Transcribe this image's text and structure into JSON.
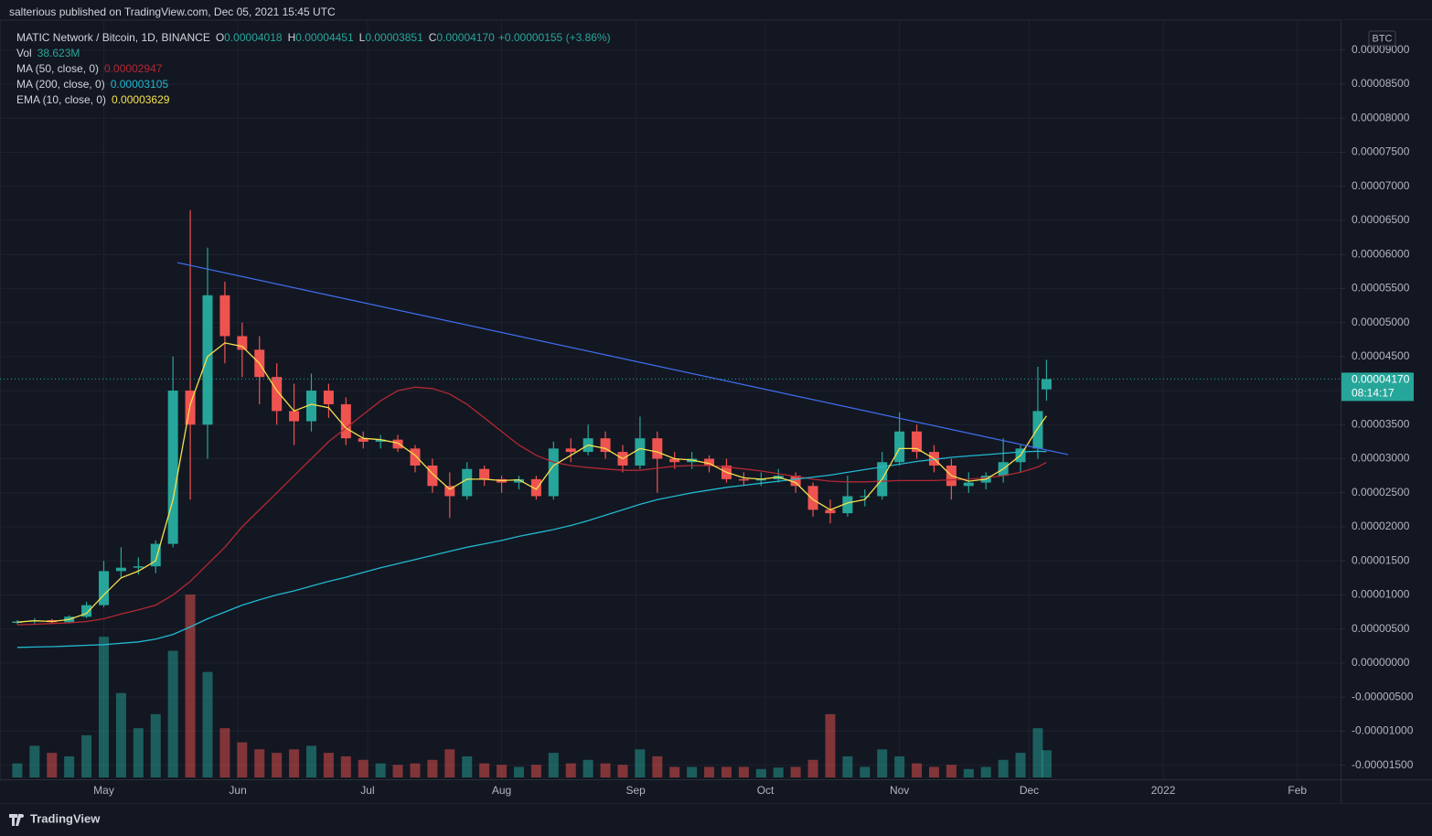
{
  "header": "salterious published on TradingView.com, Dec 05, 2021 15:45 UTC",
  "footer": "TradingView",
  "chart_data": {
    "type": "candlestick",
    "title": "MATIC Network / Bitcoin, 1D, BINANCE",
    "ohlc_legend": [
      {
        "key": "O",
        "text": "0.00004018"
      },
      {
        "key": "H",
        "text": "0.00004451"
      },
      {
        "key": "L",
        "text": "0.00003851"
      },
      {
        "key": "C",
        "text": "0.00004170"
      }
    ],
    "change": "+0.00000155 (+3.86%)",
    "currency": "BTC",
    "last_price_label": "0.00004170",
    "countdown": "08:14:17",
    "up_color": "#26a69a",
    "down_color": "#ef5350",
    "grid": true,
    "x": [
      "2021-04-11",
      "2021-04-15",
      "2021-04-19",
      "2021-04-23",
      "2021-04-27",
      "2021-05-01",
      "2021-05-05",
      "2021-05-09",
      "2021-05-13",
      "2021-05-17",
      "2021-05-21",
      "2021-05-25",
      "2021-05-29",
      "2021-06-02",
      "2021-06-06",
      "2021-06-10",
      "2021-06-14",
      "2021-06-18",
      "2021-06-22",
      "2021-06-26",
      "2021-06-30",
      "2021-07-04",
      "2021-07-08",
      "2021-07-12",
      "2021-07-16",
      "2021-07-20",
      "2021-07-24",
      "2021-07-28",
      "2021-08-01",
      "2021-08-05",
      "2021-08-09",
      "2021-08-13",
      "2021-08-17",
      "2021-08-21",
      "2021-08-25",
      "2021-08-29",
      "2021-09-02",
      "2021-09-06",
      "2021-09-10",
      "2021-09-14",
      "2021-09-18",
      "2021-09-22",
      "2021-09-26",
      "2021-09-30",
      "2021-10-04",
      "2021-10-08",
      "2021-10-12",
      "2021-10-16",
      "2021-10-20",
      "2021-10-24",
      "2021-10-28",
      "2021-11-01",
      "2021-11-05",
      "2021-11-09",
      "2021-11-13",
      "2021-11-17",
      "2021-11-21",
      "2021-11-25",
      "2021-11-29",
      "2021-12-03",
      "2021-12-05"
    ],
    "open": [
      5.9e-06,
      6.1e-06,
      6.3e-06,
      6e-06,
      6.8e-06,
      8.5e-06,
      1.35e-05,
      1.4e-05,
      1.42e-05,
      1.75e-05,
      4e-05,
      3.5e-05,
      5.4e-05,
      4.8e-05,
      4.6e-05,
      4.2e-05,
      3.7e-05,
      3.55e-05,
      4e-05,
      3.8e-05,
      3.3e-05,
      3.25e-05,
      3.28e-05,
      3.15e-05,
      2.9e-05,
      2.6e-05,
      2.45e-05,
      2.85e-05,
      2.7e-05,
      2.65e-05,
      2.7e-05,
      2.45e-05,
      3.15e-05,
      3.1e-05,
      3.3e-05,
      3.1e-05,
      2.9e-05,
      3.3e-05,
      3e-05,
      2.95e-05,
      3e-05,
      2.9e-05,
      2.7e-05,
      2.68e-05,
      2.7e-05,
      2.75e-05,
      2.6e-05,
      2.25e-05,
      2.2e-05,
      2.45e-05,
      2.45e-05,
      2.95e-05,
      3.4e-05,
      3.1e-05,
      2.9e-05,
      2.6e-05,
      2.65e-05,
      2.75e-05,
      2.95e-05,
      3.15e-05,
      4.018e-05
    ],
    "high": [
      6.3e-06,
      6.6e-06,
      6.5e-06,
      7e-06,
      9e-06,
      1.5e-05,
      1.7e-05,
      1.55e-05,
      1.8e-05,
      4.5e-05,
      6.65e-05,
      6.1e-05,
      5.6e-05,
      5e-05,
      4.8e-05,
      4.4e-05,
      4.1e-05,
      4.25e-05,
      4.1e-05,
      3.9e-05,
      3.4e-05,
      3.35e-05,
      3.35e-05,
      3.2e-05,
      3e-05,
      2.8e-05,
      2.95e-05,
      2.9e-05,
      2.75e-05,
      2.75e-05,
      2.75e-05,
      3.25e-05,
      3.3e-05,
      3.5e-05,
      3.4e-05,
      3.2e-05,
      3.62e-05,
      3.4e-05,
      3.1e-05,
      3.1e-05,
      3.05e-05,
      3e-05,
      2.8e-05,
      2.8e-05,
      2.85e-05,
      2.8e-05,
      2.65e-05,
      2.4e-05,
      2.75e-05,
      2.55e-05,
      3.1e-05,
      3.68e-05,
      3.5e-05,
      3.2e-05,
      3e-05,
      2.8e-05,
      2.8e-05,
      3.3e-05,
      3.2e-05,
      4.35e-05,
      4.451e-05
    ],
    "low": [
      5.7e-06,
      5.8e-06,
      5.7e-06,
      5.9e-06,
      6.6e-06,
      8.2e-06,
      1.25e-05,
      1.3e-05,
      1.32e-05,
      1.7e-05,
      2.4e-05,
      3e-05,
      4.4e-05,
      4.2e-05,
      3.8e-05,
      3.5e-05,
      3.2e-05,
      3.4e-05,
      3.6e-05,
      3.2e-05,
      3.15e-05,
      3.15e-05,
      3.1e-05,
      2.8e-05,
      2.5e-05,
      2.13e-05,
      2.4e-05,
      2.6e-05,
      2.5e-05,
      2.55e-05,
      2.4e-05,
      2.4e-05,
      2.95e-05,
      3.05e-05,
      3e-05,
      2.8e-05,
      2.85e-05,
      2.5e-05,
      2.85e-05,
      2.85e-05,
      2.8e-05,
      2.65e-05,
      2.6e-05,
      2.6e-05,
      2.65e-05,
      2.5e-05,
      2.15e-05,
      2.05e-05,
      2.15e-05,
      2.3e-05,
      2.4e-05,
      2.9e-05,
      3e-05,
      2.8e-05,
      2.4e-05,
      2.5e-05,
      2.55e-05,
      2.65e-05,
      2.8e-05,
      3e-05,
      3.851e-05
    ],
    "close": [
      6.1e-06,
      6.3e-06,
      6e-06,
      6.8e-06,
      8.5e-06,
      1.35e-05,
      1.4e-05,
      1.42e-05,
      1.75e-05,
      4e-05,
      3.5e-05,
      5.4e-05,
      4.8e-05,
      4.6e-05,
      4.2e-05,
      3.7e-05,
      3.55e-05,
      4e-05,
      3.8e-05,
      3.3e-05,
      3.25e-05,
      3.28e-05,
      3.15e-05,
      2.9e-05,
      2.6e-05,
      2.45e-05,
      2.85e-05,
      2.7e-05,
      2.65e-05,
      2.7e-05,
      2.45e-05,
      3.15e-05,
      3.1e-05,
      3.3e-05,
      3.1e-05,
      2.9e-05,
      3.3e-05,
      3e-05,
      2.95e-05,
      3e-05,
      2.9e-05,
      2.7e-05,
      2.68e-05,
      2.7e-05,
      2.75e-05,
      2.6e-05,
      2.25e-05,
      2.2e-05,
      2.45e-05,
      2.45e-05,
      2.95e-05,
      3.4e-05,
      3.1e-05,
      2.9e-05,
      2.6e-05,
      2.65e-05,
      2.75e-05,
      2.95e-05,
      3.15e-05,
      3.7e-05,
      4.17e-05
    ],
    "volume": {
      "name": "Vol",
      "last_label": "38.623M",
      "color": "#26a69a",
      "values": [
        20,
        45,
        35,
        30,
        60,
        200,
        120,
        70,
        90,
        180,
        260,
        150,
        70,
        50,
        40,
        35,
        40,
        45,
        35,
        30,
        25,
        20,
        18,
        20,
        25,
        40,
        30,
        20,
        18,
        15,
        18,
        35,
        20,
        25,
        20,
        18,
        40,
        30,
        15,
        15,
        15,
        15,
        15,
        12,
        14,
        15,
        25,
        90,
        30,
        15,
        40,
        30,
        20,
        15,
        18,
        12,
        15,
        25,
        35,
        70,
        38.623
      ]
    },
    "series": [
      {
        "name": "MA (50, close, 0)",
        "value_label": "0.00002947",
        "color": "#b22833",
        "values": [
          5.6e-06,
          5.7e-06,
          5.8e-06,
          5.9e-06,
          6.1e-06,
          6.5e-06,
          7.2e-06,
          7.8e-06,
          8.5e-06,
          1e-05,
          1.2e-05,
          1.45e-05,
          1.7e-05,
          2e-05,
          2.25e-05,
          2.5e-05,
          2.75e-05,
          3e-05,
          3.25e-05,
          3.45e-05,
          3.65e-05,
          3.85e-05,
          4e-05,
          4.05e-05,
          4.03e-05,
          3.95e-05,
          3.8e-05,
          3.6e-05,
          3.4e-05,
          3.2e-05,
          3.05e-05,
          2.95e-05,
          2.9e-05,
          2.87e-05,
          2.85e-05,
          2.83e-05,
          2.83e-05,
          2.86e-05,
          2.89e-05,
          2.9e-05,
          2.9e-05,
          2.88e-05,
          2.85e-05,
          2.82e-05,
          2.78e-05,
          2.74e-05,
          2.7e-05,
          2.67e-05,
          2.66e-05,
          2.66e-05,
          2.67e-05,
          2.68e-05,
          2.68e-05,
          2.68e-05,
          2.69e-05,
          2.7e-05,
          2.72e-05,
          2.75e-05,
          2.8e-05,
          2.88e-05,
          2.947e-05
        ]
      },
      {
        "name": "MA (200, close, 0)",
        "value_label": "0.00003105",
        "color": "#22b8cf",
        "values": [
          2.3e-06,
          2.35e-06,
          2.4e-06,
          2.5e-06,
          2.6e-06,
          2.7e-06,
          2.9e-06,
          3.1e-06,
          3.5e-06,
          4.2e-06,
          5.3e-06,
          6.5e-06,
          7.5e-06,
          8.5e-06,
          9.3e-06,
          1e-05,
          1.06e-05,
          1.13e-05,
          1.2e-05,
          1.26e-05,
          1.33e-05,
          1.4e-05,
          1.46e-05,
          1.52e-05,
          1.58e-05,
          1.64e-05,
          1.7e-05,
          1.75e-05,
          1.8e-05,
          1.86e-05,
          1.91e-05,
          1.96e-05,
          2.02e-05,
          2.09e-05,
          2.17e-05,
          2.25e-05,
          2.33e-05,
          2.4e-05,
          2.45e-05,
          2.5e-05,
          2.54e-05,
          2.58e-05,
          2.61e-05,
          2.64e-05,
          2.67e-05,
          2.7e-05,
          2.73e-05,
          2.76e-05,
          2.8e-05,
          2.84e-05,
          2.88e-05,
          2.92e-05,
          2.96e-05,
          2.99e-05,
          3.02e-05,
          3.04e-05,
          3.06e-05,
          3.08e-05,
          3.1e-05,
          3.11e-05,
          3.105e-05
        ]
      },
      {
        "name": "EMA (10, close, 0)",
        "value_label": "0.00003629",
        "color": "#f5e04c",
        "values": [
          6e-06,
          6.2e-06,
          6.1e-06,
          6.4e-06,
          7.3e-06,
          1e-05,
          1.25e-05,
          1.35e-05,
          1.5e-05,
          2.4e-05,
          3.8e-05,
          4.5e-05,
          4.7e-05,
          4.65e-05,
          4.4e-05,
          4e-05,
          3.7e-05,
          3.8e-05,
          3.75e-05,
          3.45e-05,
          3.3e-05,
          3.28e-05,
          3.23e-05,
          3.05e-05,
          2.78e-05,
          2.55e-05,
          2.7e-05,
          2.7e-05,
          2.68e-05,
          2.69e-05,
          2.55e-05,
          2.9e-05,
          3.05e-05,
          3.2e-05,
          3.15e-05,
          3e-05,
          3.15e-05,
          3.1e-05,
          3e-05,
          2.98e-05,
          2.93e-05,
          2.8e-05,
          2.72e-05,
          2.7e-05,
          2.73e-05,
          2.65e-05,
          2.4e-05,
          2.25e-05,
          2.35e-05,
          2.4e-05,
          2.7e-05,
          3.15e-05,
          3.15e-05,
          3e-05,
          2.75e-05,
          2.67e-05,
          2.7e-05,
          2.85e-05,
          3.05e-05,
          3.45e-05,
          3.629e-05
        ]
      }
    ],
    "trendline": {
      "color": "#3f6ff0",
      "x": [
        "2021-05-18",
        "2021-12-10"
      ],
      "values": [
        5.88e-05,
        3.06e-05
      ]
    },
    "xlim": [
      "2021-04-07",
      "2022-02-11"
    ],
    "xticks": [
      {
        "value": "2021-05-01",
        "label": "May"
      },
      {
        "value": "2021-06-01",
        "label": "Jun"
      },
      {
        "value": "2021-07-01",
        "label": "Jul"
      },
      {
        "value": "2021-08-01",
        "label": "Aug"
      },
      {
        "value": "2021-09-01",
        "label": "Sep"
      },
      {
        "value": "2021-10-01",
        "label": "Oct"
      },
      {
        "value": "2021-11-01",
        "label": "Nov"
      },
      {
        "value": "2021-12-01",
        "label": "Dec"
      },
      {
        "value": "2022-01-01",
        "label": "2022"
      },
      {
        "value": "2022-02-01",
        "label": "Feb"
      }
    ],
    "ylim": [
      -1.68e-05,
      9.44e-05
    ],
    "yticks": [
      {
        "value": -1.5e-05,
        "label": "-0.00001500"
      },
      {
        "value": -1e-05,
        "label": "-0.00001000"
      },
      {
        "value": -5e-06,
        "label": "-0.00000500"
      },
      {
        "value": 0,
        "label": "0.00000000"
      },
      {
        "value": 5e-06,
        "label": "0.00000500"
      },
      {
        "value": 1e-05,
        "label": "0.00001000"
      },
      {
        "value": 1.5e-05,
        "label": "0.00001500"
      },
      {
        "value": 2e-05,
        "label": "0.00002000"
      },
      {
        "value": 2.5e-05,
        "label": "0.00002500"
      },
      {
        "value": 3e-05,
        "label": "0.00003000"
      },
      {
        "value": 3.5e-05,
        "label": "0.00003500"
      },
      {
        "value": 4e-05,
        "label": "0.00004000"
      },
      {
        "value": 4.5e-05,
        "label": "0.00004500"
      },
      {
        "value": 5e-05,
        "label": "0.00005000"
      },
      {
        "value": 5.5e-05,
        "label": "0.00005500"
      },
      {
        "value": 6e-05,
        "label": "0.00006000"
      },
      {
        "value": 6.5e-05,
        "label": "0.00006500"
      },
      {
        "value": 7e-05,
        "label": "0.00007000"
      },
      {
        "value": 7.5e-05,
        "label": "0.00007500"
      },
      {
        "value": 8e-05,
        "label": "0.00008000"
      },
      {
        "value": 8.5e-05,
        "label": "0.00008500"
      },
      {
        "value": 9e-05,
        "label": "0.00009000"
      }
    ]
  }
}
